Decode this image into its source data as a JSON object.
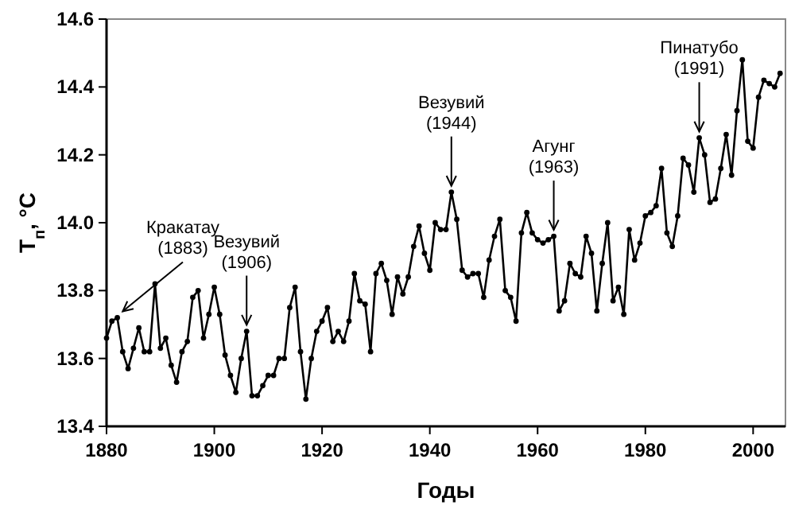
{
  "chart_data": {
    "type": "line",
    "xlabel": "Годы",
    "ylabel": "T$_{п}$, °C",
    "x": [
      1880,
      1881,
      1882,
      1883,
      1884,
      1885,
      1886,
      1887,
      1888,
      1889,
      1890,
      1891,
      1892,
      1893,
      1894,
      1895,
      1896,
      1897,
      1898,
      1899,
      1900,
      1901,
      1902,
      1903,
      1904,
      1905,
      1906,
      1907,
      1908,
      1909,
      1910,
      1911,
      1912,
      1913,
      1914,
      1915,
      1916,
      1917,
      1918,
      1919,
      1920,
      1921,
      1922,
      1923,
      1924,
      1925,
      1926,
      1927,
      1928,
      1929,
      1930,
      1931,
      1932,
      1933,
      1934,
      1935,
      1936,
      1937,
      1938,
      1939,
      1940,
      1941,
      1942,
      1943,
      1944,
      1945,
      1946,
      1947,
      1948,
      1949,
      1950,
      1951,
      1952,
      1953,
      1954,
      1955,
      1956,
      1957,
      1958,
      1959,
      1960,
      1961,
      1962,
      1963,
      1964,
      1965,
      1966,
      1967,
      1968,
      1969,
      1970,
      1971,
      1972,
      1973,
      1974,
      1975,
      1976,
      1977,
      1978,
      1979,
      1980,
      1981,
      1982,
      1983,
      1984,
      1985,
      1986,
      1987,
      1988,
      1989,
      1990,
      1991,
      1992,
      1993,
      1994,
      1995,
      1996,
      1997,
      1998,
      1999,
      2000,
      2001,
      2002,
      2003,
      2004,
      2005
    ],
    "series": [
      {
        "color": "#000000",
        "values": [
          13.66,
          13.71,
          13.72,
          13.62,
          13.57,
          13.63,
          13.69,
          13.62,
          13.62,
          13.82,
          13.63,
          13.66,
          13.58,
          13.53,
          13.62,
          13.65,
          13.78,
          13.8,
          13.66,
          13.73,
          13.81,
          13.73,
          13.61,
          13.55,
          13.5,
          13.6,
          13.68,
          13.49,
          13.49,
          13.52,
          13.55,
          13.55,
          13.6,
          13.6,
          13.75,
          13.81,
          13.62,
          13.48,
          13.6,
          13.68,
          13.71,
          13.75,
          13.65,
          13.68,
          13.65,
          13.71,
          13.85,
          13.77,
          13.76,
          13.62,
          13.85,
          13.88,
          13.83,
          13.73,
          13.84,
          13.79,
          13.84,
          13.93,
          13.99,
          13.91,
          13.86,
          14.0,
          13.98,
          13.98,
          14.09,
          14.01,
          13.86,
          13.84,
          13.85,
          13.85,
          13.78,
          13.89,
          13.96,
          14.01,
          13.8,
          13.78,
          13.71,
          13.97,
          14.03,
          13.97,
          13.95,
          13.94,
          13.95,
          13.96,
          13.74,
          13.77,
          13.88,
          13.85,
          13.84,
          13.96,
          13.91,
          13.74,
          13.88,
          14.0,
          13.77,
          13.81,
          13.73,
          13.98,
          13.89,
          13.94,
          14.02,
          14.03,
          14.05,
          14.16,
          13.97,
          13.93,
          14.02,
          14.19,
          14.17,
          14.09,
          14.25,
          14.2,
          14.06,
          14.07,
          14.16,
          14.26,
          14.14,
          14.33,
          14.48,
          14.24,
          14.22,
          14.37,
          14.42,
          14.41,
          14.4,
          14.44
        ]
      }
    ],
    "xlim": [
      1880,
      2006
    ],
    "xticks": [
      1880,
      1900,
      1920,
      1940,
      1960,
      1980,
      2000
    ],
    "ylim": [
      13.4,
      14.6
    ],
    "yticks": [
      {
        "value": 13.4,
        "label": "13.4"
      },
      {
        "value": 13.6,
        "label": "13.6"
      },
      {
        "value": 13.8,
        "label": "13.8"
      },
      {
        "value": 14.0,
        "label": "14.0"
      },
      {
        "value": 14.2,
        "label": "14.2"
      },
      {
        "value": 14.4,
        "label": "14.4"
      },
      {
        "value": 14.6,
        "label": "14.6"
      }
    ],
    "marker": "circle",
    "line_style": "solid",
    "grid": false,
    "annotations": [
      {
        "text": "Кракатау\n(1883)",
        "x": 1883,
        "y": 13.72
      },
      {
        "text": "Везувий\n(1906)",
        "x": 1906,
        "y": 13.68
      },
      {
        "text": "Везувий\n(1944)",
        "x": 1944,
        "y": 14.09
      },
      {
        "text": "Агунг\n(1963)",
        "x": 1963,
        "y": 13.96
      },
      {
        "text": "Пинатубо\n(1991)",
        "x": 1990,
        "y": 14.25
      }
    ]
  }
}
